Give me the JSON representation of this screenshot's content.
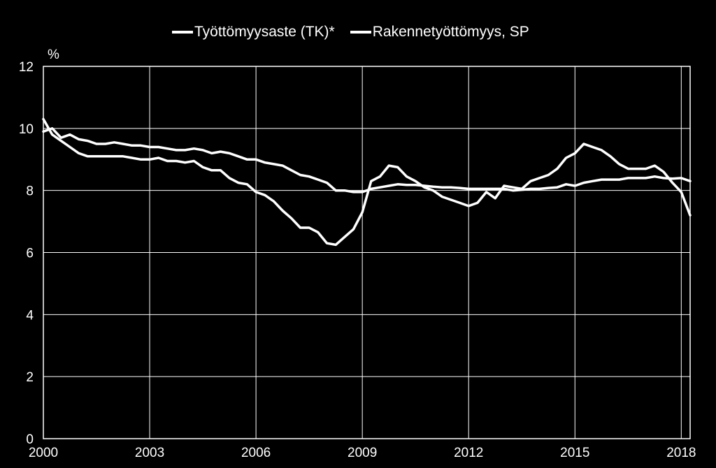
{
  "chart_data": {
    "type": "line",
    "ylabel": "%",
    "ylim": [
      0,
      12
    ],
    "xlim": [
      2000,
      2018.25
    ],
    "yticks": [
      "0",
      "2",
      "4",
      "6",
      "8",
      "10",
      "12"
    ],
    "xticks": [
      "2000",
      "2003",
      "2006",
      "2009",
      "2012",
      "2015",
      "2018"
    ],
    "grid": true,
    "legend_position": "top",
    "colors": {
      "background": "#000000",
      "lines": "#ffffff",
      "grid": "#ffffff"
    },
    "series": [
      {
        "name": "Työttömyysaste (TK)*",
        "x": [
          2000,
          2000.25,
          2000.5,
          2000.75,
          2001,
          2001.25,
          2001.5,
          2001.75,
          2002,
          2002.25,
          2002.5,
          2002.75,
          2003,
          2003.25,
          2003.5,
          2003.75,
          2004,
          2004.25,
          2004.5,
          2004.75,
          2005,
          2005.25,
          2005.5,
          2005.75,
          2006,
          2006.25,
          2006.5,
          2006.75,
          2007,
          2007.25,
          2007.5,
          2007.75,
          2008,
          2008.25,
          2008.5,
          2008.75,
          2009,
          2009.25,
          2009.5,
          2009.75,
          2010,
          2010.25,
          2010.5,
          2010.75,
          2011,
          2011.25,
          2011.5,
          2011.75,
          2012,
          2012.25,
          2012.5,
          2012.75,
          2013,
          2013.25,
          2013.5,
          2013.75,
          2014,
          2014.25,
          2014.5,
          2014.75,
          2015,
          2015.25,
          2015.5,
          2015.75,
          2016,
          2016.25,
          2016.5,
          2016.75,
          2017,
          2017.25,
          2017.5,
          2017.75,
          2018,
          2018.25
        ],
        "values": [
          10.3,
          9.8,
          9.6,
          9.4,
          9.2,
          9.1,
          9.1,
          9.1,
          9.1,
          9.1,
          9.05,
          9.0,
          9.0,
          9.05,
          8.95,
          8.95,
          8.9,
          8.95,
          8.75,
          8.65,
          8.65,
          8.4,
          8.25,
          8.2,
          7.95,
          7.85,
          7.65,
          7.35,
          7.1,
          6.8,
          6.8,
          6.65,
          6.3,
          6.25,
          6.5,
          6.75,
          7.3,
          8.3,
          8.45,
          8.8,
          8.75,
          8.45,
          8.3,
          8.1,
          8.0,
          7.8,
          7.7,
          7.6,
          7.5,
          7.6,
          7.95,
          7.75,
          8.15,
          8.1,
          8.05,
          8.3,
          8.4,
          8.5,
          8.7,
          9.05,
          9.2,
          9.5,
          9.4,
          9.3,
          9.1,
          8.85,
          8.7,
          8.7,
          8.7,
          8.8,
          8.6,
          8.25,
          7.95,
          7.2
        ]
      },
      {
        "name": "Rakennetyöttömyys, SP",
        "x": [
          2000,
          2000.25,
          2000.5,
          2000.75,
          2001,
          2001.25,
          2001.5,
          2001.75,
          2002,
          2002.25,
          2002.5,
          2002.75,
          2003,
          2003.25,
          2003.5,
          2003.75,
          2004,
          2004.25,
          2004.5,
          2004.75,
          2005,
          2005.25,
          2005.5,
          2005.75,
          2006,
          2006.25,
          2006.5,
          2006.75,
          2007,
          2007.25,
          2007.5,
          2007.75,
          2008,
          2008.25,
          2008.5,
          2008.75,
          2009,
          2009.25,
          2009.5,
          2009.75,
          2010,
          2010.25,
          2010.5,
          2010.75,
          2011,
          2011.25,
          2011.5,
          2011.75,
          2012,
          2012.25,
          2012.5,
          2012.75,
          2013,
          2013.25,
          2013.5,
          2013.75,
          2014,
          2014.25,
          2014.5,
          2014.75,
          2015,
          2015.25,
          2015.5,
          2015.75,
          2016,
          2016.25,
          2016.5,
          2016.75,
          2017,
          2017.25,
          2017.5,
          2017.75,
          2018,
          2018.25
        ],
        "values": [
          9.9,
          10.0,
          9.7,
          9.8,
          9.65,
          9.6,
          9.5,
          9.5,
          9.55,
          9.5,
          9.45,
          9.45,
          9.4,
          9.4,
          9.35,
          9.3,
          9.3,
          9.35,
          9.3,
          9.2,
          9.25,
          9.2,
          9.1,
          9.0,
          9.0,
          8.9,
          8.85,
          8.8,
          8.65,
          8.5,
          8.45,
          8.35,
          8.25,
          8.0,
          8.0,
          7.95,
          7.95,
          8.05,
          8.1,
          8.15,
          8.2,
          8.18,
          8.18,
          8.15,
          8.12,
          8.1,
          8.1,
          8.08,
          8.05,
          8.05,
          8.05,
          8.05,
          8.05,
          8.0,
          8.02,
          8.05,
          8.05,
          8.08,
          8.1,
          8.2,
          8.15,
          8.25,
          8.3,
          8.35,
          8.35,
          8.35,
          8.4,
          8.4,
          8.4,
          8.45,
          8.4,
          8.38,
          8.4,
          8.3
        ]
      }
    ]
  }
}
